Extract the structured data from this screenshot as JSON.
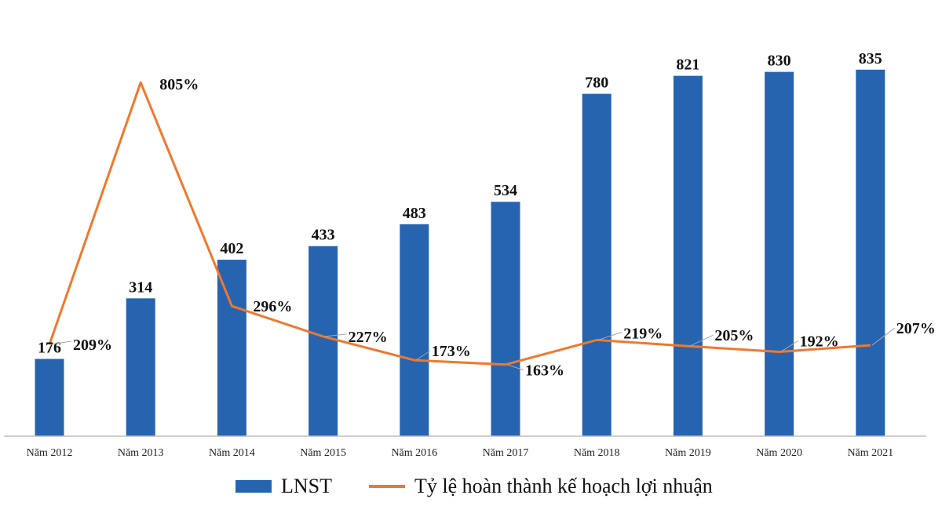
{
  "colors": {
    "bar": "#2764b0",
    "line": "#f0782b",
    "axis": "#bfbfbf",
    "leader": "#a6a6a6"
  },
  "chart_data": {
    "type": "bar",
    "categories": [
      "Năm 2012",
      "Năm 2013",
      "Năm 2014",
      "Năm 2015",
      "Năm 2016",
      "Năm 2017",
      "Năm 2018",
      "Năm 2019",
      "Năm 2020",
      "Năm 2021"
    ],
    "series": [
      {
        "name": "LNST",
        "type": "bar",
        "values": [
          176,
          314,
          402,
          433,
          483,
          534,
          780,
          821,
          830,
          835
        ],
        "labels": [
          "176",
          "314",
          "402",
          "433",
          "483",
          "534",
          "780",
          "821",
          "830",
          "835"
        ]
      },
      {
        "name": "Tỷ lệ hoàn thành kế hoạch lợi nhuận",
        "type": "line",
        "values": [
          209,
          805,
          296,
          227,
          173,
          163,
          219,
          205,
          192,
          207
        ],
        "labels": [
          "209%",
          "805%",
          "296%",
          "227%",
          "173%",
          "163%",
          "219%",
          "205%",
          "192%",
          "207%"
        ]
      }
    ],
    "axes": {
      "primary_ylim": [
        0,
        900
      ],
      "secondary_ylim": [
        0,
        900
      ],
      "y_axis_visible": false
    },
    "grid": false,
    "legend": "bottom"
  },
  "legend": {
    "bar_label": "LNST",
    "line_label": "Tỷ lệ hoàn thành kế hoạch lợi nhuận"
  }
}
